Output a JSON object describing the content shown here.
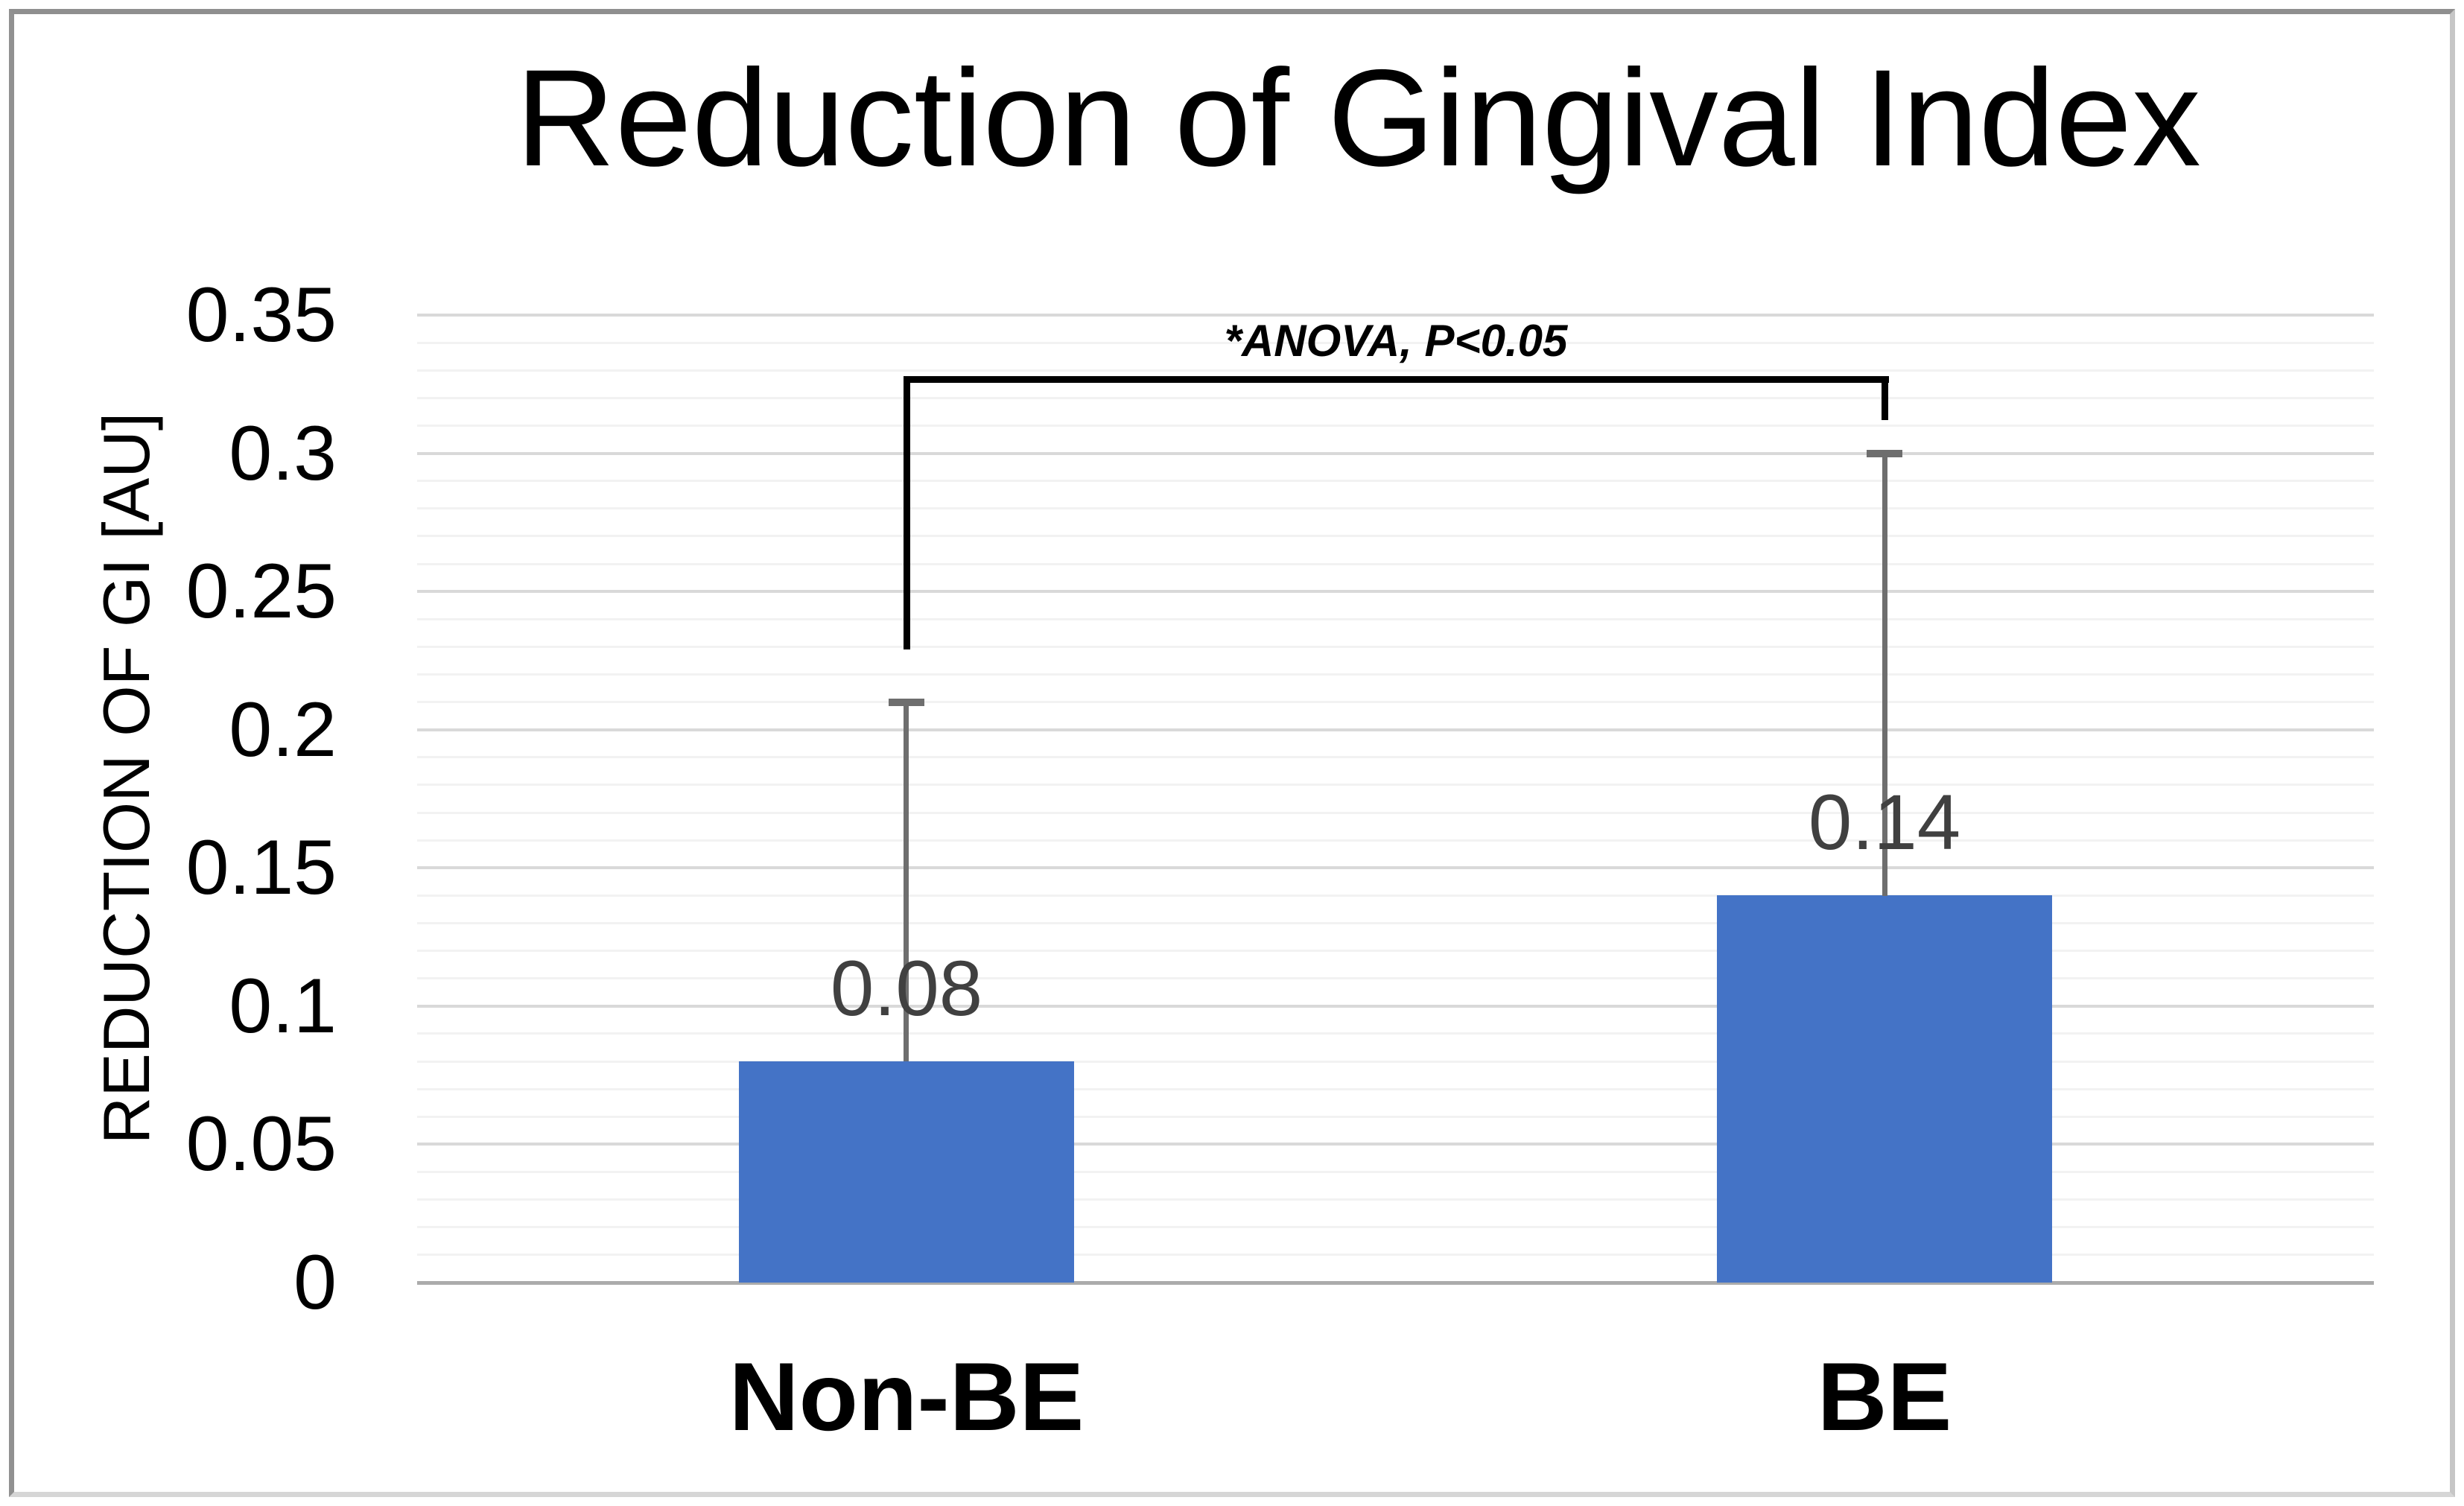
{
  "figure": {
    "background": "#FFFFFF",
    "border_color": "#9A9A9A"
  },
  "chart_data": {
    "type": "bar",
    "title": "Reduction of Gingival Index",
    "ylabel": "REDUCTION OF GI [AU]",
    "xlabel": "",
    "categories": [
      "Non-BE",
      "BE"
    ],
    "values": [
      0.08,
      0.14
    ],
    "data_labels": [
      "0.08",
      "0.14"
    ],
    "error_bar_tops": [
      0.21,
      0.3
    ],
    "ylim": [
      0,
      0.35
    ],
    "ytick_step": 0.05,
    "ytick_labels": [
      "0",
      "0.05",
      "0.1",
      "0.15",
      "0.2",
      "0.25",
      "0.3",
      "0.35"
    ],
    "minor_grid_step": 0.01,
    "grid": "horizontal major + minor",
    "legend": "none",
    "annotation": {
      "text": "*ANOVA, P<0.05",
      "bracket": {
        "top_value": 0.328,
        "left_leg_bottom_value": 0.229,
        "right_leg_bottom_value": 0.312
      }
    },
    "colors": {
      "bar_fill": "#4473C6",
      "error_bar": "#6E6E6E",
      "data_label": "#404040",
      "major_gridline": "#D9D9D9",
      "minor_gridline": "#F2F2F2",
      "axis_line": "#ABABAB",
      "bracket": "#000000",
      "text": "#000000"
    }
  }
}
